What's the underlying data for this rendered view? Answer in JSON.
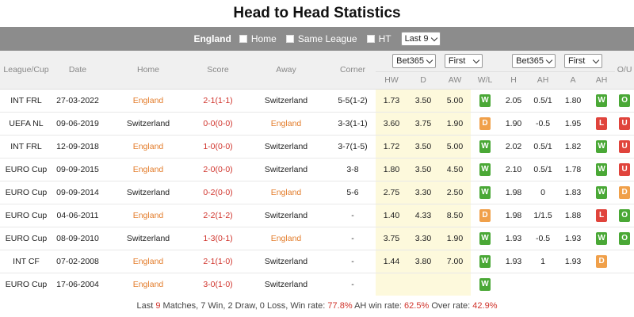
{
  "title": "Head to Head Statistics",
  "filter": {
    "team": "England",
    "home_label": "Home",
    "same_league_label": "Same League",
    "ht_label": "HT",
    "last_select": "Last 9"
  },
  "headers": {
    "league": "League/Cup",
    "date": "Date",
    "home": "Home",
    "score": "Score",
    "away": "Away",
    "corner": "Corner",
    "bookmaker1": "Bet365",
    "period1": "First",
    "bookmaker2": "Bet365",
    "period2": "First",
    "ou": "O/U",
    "hw": "HW",
    "d": "D",
    "aw": "AW",
    "wl": "W/L",
    "h": "H",
    "ah": "AH",
    "a": "A",
    "ah2": "AH"
  },
  "matches": [
    {
      "league": "INT FRL",
      "date": "27-03-2022",
      "home": "England",
      "score": "2-1(1-1)",
      "away": "Switzerland",
      "corner": "5-5(1-2)",
      "hw": "1.73",
      "d": "3.50",
      "aw": "5.00",
      "wl": "W",
      "h": "2.05",
      "ah": "0.5/1",
      "a": "1.80",
      "ahr": "W",
      "ou": "O",
      "home_eng": true
    },
    {
      "league": "UEFA NL",
      "date": "09-06-2019",
      "home": "Switzerland",
      "score": "0-0(0-0)",
      "away": "England",
      "corner": "3-3(1-1)",
      "hw": "3.60",
      "d": "3.75",
      "aw": "1.90",
      "wl": "D",
      "h": "1.90",
      "ah": "-0.5",
      "a": "1.95",
      "ahr": "L",
      "ou": "U",
      "home_eng": false
    },
    {
      "league": "INT FRL",
      "date": "12-09-2018",
      "home": "England",
      "score": "1-0(0-0)",
      "away": "Switzerland",
      "corner": "3-7(1-5)",
      "hw": "1.72",
      "d": "3.50",
      "aw": "5.00",
      "wl": "W",
      "h": "2.02",
      "ah": "0.5/1",
      "a": "1.82",
      "ahr": "W",
      "ou": "U",
      "home_eng": true
    },
    {
      "league": "EURO Cup",
      "date": "09-09-2015",
      "home": "England",
      "score": "2-0(0-0)",
      "away": "Switzerland",
      "corner": "3-8",
      "hw": "1.80",
      "d": "3.50",
      "aw": "4.50",
      "wl": "W",
      "h": "2.10",
      "ah": "0.5/1",
      "a": "1.78",
      "ahr": "W",
      "ou": "U",
      "home_eng": true
    },
    {
      "league": "EURO Cup",
      "date": "09-09-2014",
      "home": "Switzerland",
      "score": "0-2(0-0)",
      "away": "England",
      "corner": "5-6",
      "hw": "2.75",
      "d": "3.30",
      "aw": "2.50",
      "wl": "W",
      "h": "1.98",
      "ah": "0",
      "a": "1.83",
      "ahr": "W",
      "ou": "D",
      "home_eng": false
    },
    {
      "league": "EURO Cup",
      "date": "04-06-2011",
      "home": "England",
      "score": "2-2(1-2)",
      "away": "Switzerland",
      "corner": "-",
      "hw": "1.40",
      "d": "4.33",
      "aw": "8.50",
      "wl": "D",
      "h": "1.98",
      "ah": "1/1.5",
      "a": "1.88",
      "ahr": "L",
      "ou": "O",
      "home_eng": true
    },
    {
      "league": "EURO Cup",
      "date": "08-09-2010",
      "home": "Switzerland",
      "score": "1-3(0-1)",
      "away": "England",
      "corner": "-",
      "hw": "3.75",
      "d": "3.30",
      "aw": "1.90",
      "wl": "W",
      "h": "1.93",
      "ah": "-0.5",
      "a": "1.93",
      "ahr": "W",
      "ou": "O",
      "home_eng": false
    },
    {
      "league": "INT CF",
      "date": "07-02-2008",
      "home": "England",
      "score": "2-1(1-0)",
      "away": "Switzerland",
      "corner": "-",
      "hw": "1.44",
      "d": "3.80",
      "aw": "7.00",
      "wl": "W",
      "h": "1.93",
      "ah": "1",
      "a": "1.93",
      "ahr": "D",
      "ou": "",
      "home_eng": true
    },
    {
      "league": "EURO Cup",
      "date": "17-06-2004",
      "home": "England",
      "score": "3-0(1-0)",
      "away": "Switzerland",
      "corner": "-",
      "hw": "",
      "d": "",
      "aw": "",
      "wl": "W",
      "h": "",
      "ah": "",
      "a": "",
      "ahr": "",
      "ou": "",
      "home_eng": true
    }
  ],
  "footer": {
    "prefix": "Last",
    "count": "9",
    "summary": "Matches, 7 Win, 2 Draw, 0 Loss, Win rate:",
    "win_rate": "77.8%",
    "ah_label": "AH win rate:",
    "ah_rate": "62.5%",
    "over_label": "Over rate:",
    "over_rate": "42.9%"
  },
  "colors": {
    "filter_bg": "#8c8c8c",
    "england": "#e37d2c",
    "score": "#d0342c",
    "win": "#4aa836",
    "draw": "#f0a04a",
    "loss": "#e0443c",
    "highlight": "#fdf9dc"
  }
}
